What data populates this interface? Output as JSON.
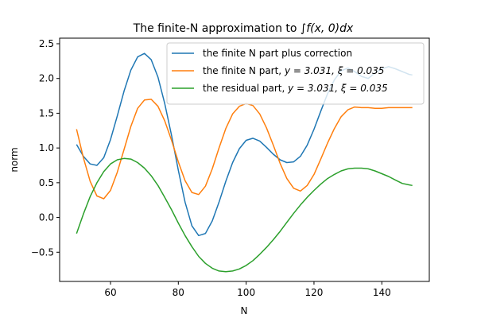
{
  "chart_data": {
    "type": "line",
    "title_prefix": "The finite-N approximation to ",
    "title_math": "∫f(x, 0)dx",
    "xlabel": "N",
    "ylabel": "norm",
    "xlim": [
      45,
      154
    ],
    "ylim": [
      -0.92,
      2.58
    ],
    "xticks": [
      60,
      80,
      100,
      120,
      140
    ],
    "yticks": [
      -0.5,
      0.0,
      0.5,
      1.0,
      1.5,
      2.0,
      2.5
    ],
    "ytick_labels": [
      "−0.5",
      "0.0",
      "0.5",
      "1.0",
      "1.5",
      "2.0",
      "2.5"
    ],
    "grid": false,
    "legend_position": "top-right",
    "x": [
      50,
      52,
      54,
      56,
      58,
      60,
      62,
      64,
      66,
      68,
      70,
      72,
      74,
      76,
      78,
      80,
      82,
      84,
      86,
      88,
      90,
      92,
      94,
      96,
      98,
      100,
      102,
      104,
      106,
      108,
      110,
      112,
      114,
      116,
      118,
      120,
      122,
      124,
      126,
      128,
      130,
      132,
      134,
      136,
      138,
      140,
      142,
      144,
      146,
      148,
      149
    ],
    "series": [
      {
        "name": "the finite N part plus correction",
        "color": "#1f77b4",
        "values": [
          1.05,
          0.88,
          0.77,
          0.75,
          0.86,
          1.12,
          1.46,
          1.82,
          2.12,
          2.31,
          2.36,
          2.27,
          2.02,
          1.64,
          1.18,
          0.68,
          0.22,
          -0.12,
          -0.26,
          -0.23,
          -0.05,
          0.22,
          0.52,
          0.79,
          0.99,
          1.11,
          1.14,
          1.1,
          1.01,
          0.91,
          0.83,
          0.79,
          0.8,
          0.88,
          1.04,
          1.27,
          1.53,
          1.78,
          1.98,
          2.11,
          2.15,
          2.1,
          2.03,
          2.0,
          2.08,
          2.14,
          2.17,
          2.14,
          2.1,
          2.06,
          2.05
        ]
      },
      {
        "name_prefix": "the finite N part, ",
        "name_params": "y = 3.031, ξ = 0.035",
        "name": "the finite N part, y = 3.031, ξ = 0.035",
        "color": "#ff7f0e",
        "values": [
          1.27,
          0.86,
          0.52,
          0.31,
          0.27,
          0.39,
          0.65,
          0.98,
          1.31,
          1.57,
          1.69,
          1.7,
          1.6,
          1.39,
          1.11,
          0.8,
          0.53,
          0.36,
          0.33,
          0.45,
          0.7,
          1.0,
          1.28,
          1.49,
          1.6,
          1.64,
          1.61,
          1.49,
          1.29,
          1.04,
          0.78,
          0.56,
          0.42,
          0.38,
          0.46,
          0.62,
          0.84,
          1.07,
          1.28,
          1.45,
          1.55,
          1.59,
          1.58,
          1.58,
          1.57,
          1.57,
          1.58,
          1.58,
          1.58,
          1.58,
          1.58
        ]
      },
      {
        "name_prefix": "the residual part, ",
        "name_params": "y = 3.031, ξ = 0.035",
        "name": "the residual part, y = 3.031, ξ = 0.035",
        "color": "#2ca02c",
        "values": [
          -0.23,
          0.05,
          0.3,
          0.5,
          0.66,
          0.77,
          0.83,
          0.85,
          0.84,
          0.79,
          0.71,
          0.6,
          0.46,
          0.29,
          0.11,
          -0.08,
          -0.26,
          -0.42,
          -0.56,
          -0.66,
          -0.73,
          -0.77,
          -0.78,
          -0.77,
          -0.74,
          -0.69,
          -0.62,
          -0.53,
          -0.43,
          -0.32,
          -0.2,
          -0.07,
          0.06,
          0.18,
          0.29,
          0.39,
          0.48,
          0.56,
          0.62,
          0.67,
          0.7,
          0.71,
          0.71,
          0.7,
          0.67,
          0.63,
          0.59,
          0.54,
          0.49,
          0.47,
          0.46
        ]
      }
    ]
  }
}
